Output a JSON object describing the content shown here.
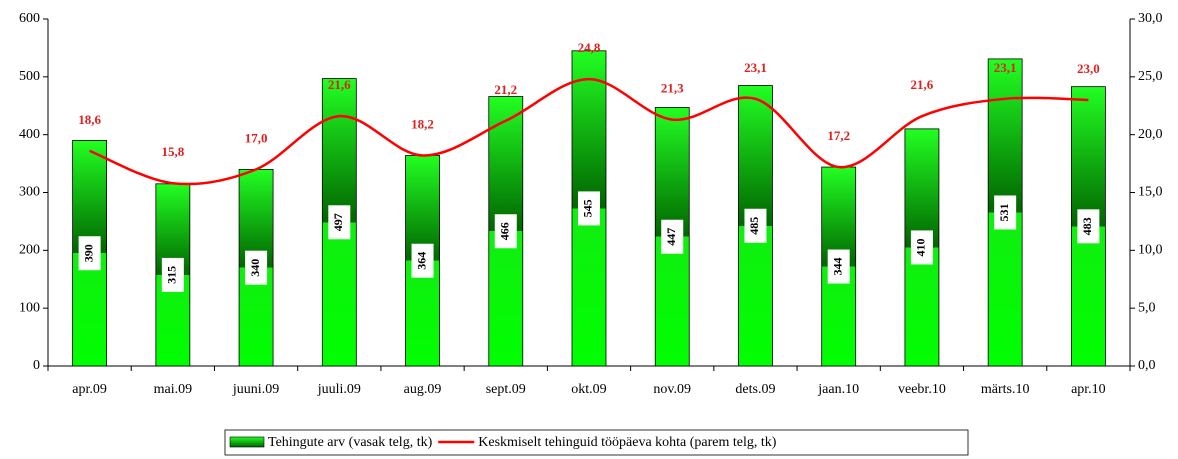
{
  "chart_data": {
    "type": "bar_line",
    "categories": [
      "apr.09",
      "mai.09",
      "juuni.09",
      "juuli.09",
      "aug.09",
      "sept.09",
      "okt.09",
      "nov.09",
      "dets.09",
      "jaan.10",
      "veebr.10",
      "märts.10",
      "apr.10"
    ],
    "series": [
      {
        "name": "Tehingute arv (vasak telg, tk)",
        "type": "bar",
        "color": "#00ee00",
        "values": [
          390,
          315,
          340,
          497,
          364,
          466,
          545,
          447,
          485,
          344,
          410,
          531,
          483
        ]
      },
      {
        "name": "Keskmiselt tehinguid tööpäeva kohta (parem telg, tk)",
        "type": "line",
        "color": "#ff0000",
        "axis": "y2",
        "values": [
          18.6,
          15.8,
          17.0,
          21.6,
          18.2,
          21.2,
          24.8,
          21.3,
          23.1,
          17.2,
          21.6,
          23.1,
          23.0
        ],
        "value_labels": [
          "18,6",
          "15,8",
          "17,0",
          "21,6",
          "18,2",
          "21,2",
          "24,8",
          "21,3",
          "23,1",
          "17,2",
          "21,6",
          "23,1",
          "23,0"
        ]
      }
    ],
    "ylim": [
      0,
      600
    ],
    "yticks": [
      0,
      100,
      200,
      300,
      400,
      500,
      600
    ],
    "y2lim": [
      0,
      30
    ],
    "y2ticks": [
      {
        "value": 0,
        "label": "0,0"
      },
      {
        "value": 5,
        "label": "5,0"
      },
      {
        "value": 10,
        "label": "10,0"
      },
      {
        "value": 15,
        "label": "15,0"
      },
      {
        "value": 20,
        "label": "20,0"
      },
      {
        "value": 25,
        "label": "25,0"
      },
      {
        "value": 30,
        "label": "30,0"
      }
    ],
    "grid": false,
    "legend": "bottom"
  }
}
